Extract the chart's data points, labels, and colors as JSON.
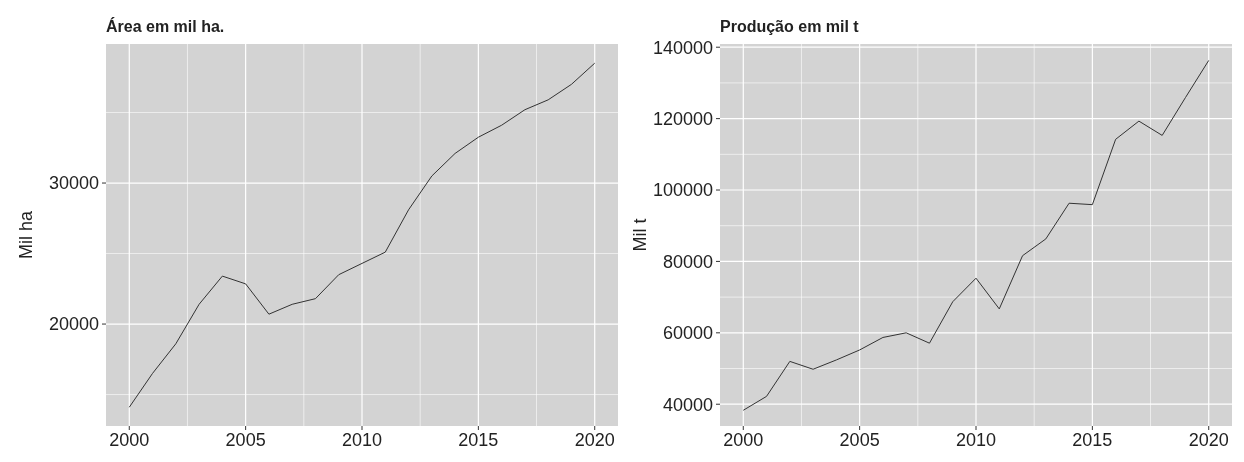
{
  "chart_data": [
    {
      "type": "line",
      "title": "Área em mil ha.",
      "ylabel": "Mil ha",
      "x": [
        2000,
        2001,
        2002,
        2003,
        2004,
        2005,
        2006,
        2007,
        2008,
        2009,
        2010,
        2011,
        2012,
        2013,
        2014,
        2015,
        2016,
        2017,
        2018,
        2019,
        2020
      ],
      "series": [
        {
          "color": "#333333",
          "values": [
            14100,
            16500,
            18600,
            21400,
            23400,
            22850,
            20700,
            21400,
            21800,
            23500,
            24300,
            25100,
            28100,
            30500,
            32100,
            33250,
            34100,
            35200,
            35900,
            37000,
            38500
          ]
        }
      ],
      "xlim": [
        1999,
        2021
      ],
      "xticks": [
        2000,
        {
          "value": 2002.5,
          "label": null
        },
        2005,
        {
          "value": 2007.5,
          "label": null
        },
        2010,
        {
          "value": 2012.5,
          "label": null
        },
        2015,
        {
          "value": 2017.5,
          "label": null
        },
        2020
      ],
      "ylim": [
        12770,
        39860
      ],
      "yticks": [
        {
          "value": 15000,
          "label": null
        },
        20000,
        {
          "value": 25000,
          "label": null
        },
        30000,
        {
          "value": 35000,
          "label": null
        }
      ],
      "grid": true,
      "line_style": "solid",
      "marker": "none"
    },
    {
      "type": "line",
      "title": "Produção em mil t",
      "ylabel": "Mil t",
      "x": [
        2000,
        2001,
        2002,
        2003,
        2004,
        2005,
        2006,
        2007,
        2008,
        2009,
        2010,
        2011,
        2012,
        2013,
        2014,
        2015,
        2016,
        2017,
        2018,
        2019,
        2020
      ],
      "series": [
        {
          "color": "#333333",
          "values": [
            38300,
            42200,
            52000,
            49800,
            52400,
            55200,
            58700,
            60000,
            57100,
            68700,
            75300,
            66700,
            81600,
            86300,
            96300,
            95900,
            114200,
            119300,
            115300,
            125900,
            136300
          ]
        }
      ],
      "xlim": [
        1999,
        2021
      ],
      "xticks": [
        2000,
        {
          "value": 2002.5,
          "label": null
        },
        2005,
        {
          "value": 2007.5,
          "label": null
        },
        2010,
        {
          "value": 2012.5,
          "label": null
        },
        2015,
        {
          "value": 2017.5,
          "label": null
        },
        2020
      ],
      "ylim": [
        33900,
        140900
      ],
      "yticks": [
        40000,
        {
          "value": 50000,
          "label": null
        },
        60000,
        {
          "value": 70000,
          "label": null
        },
        80000,
        {
          "value": 90000,
          "label": null
        },
        100000,
        {
          "value": 110000,
          "label": null
        },
        120000,
        {
          "value": 130000,
          "label": null
        },
        140000
      ],
      "grid": true,
      "line_style": "solid",
      "marker": "none"
    }
  ]
}
